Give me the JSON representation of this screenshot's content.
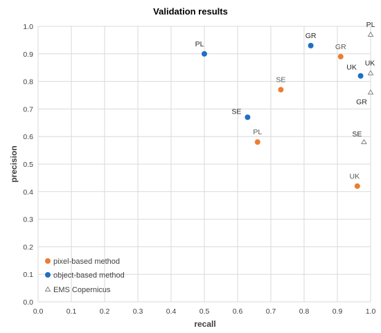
{
  "chart_data": {
    "type": "scatter",
    "title": "Validation results",
    "xlabel": "recall",
    "ylabel": "precision",
    "xlim": [
      0,
      1
    ],
    "ylim": [
      0,
      1
    ],
    "xticks": [
      "0.0",
      "0.1",
      "0.2",
      "0.3",
      "0.4",
      "0.5",
      "0.6",
      "0.7",
      "0.8",
      "0.9",
      "1.0"
    ],
    "yticks": [
      "0.0",
      "0.1",
      "0.2",
      "0.3",
      "0.4",
      "0.5",
      "0.6",
      "0.7",
      "0.8",
      "0.9",
      "1.0"
    ],
    "grid": true,
    "legend_position": "bottom-left",
    "series": [
      {
        "name": "pixel-based method",
        "marker": "circle",
        "color": "#ed7d31",
        "label_color": "#595959",
        "points": [
          {
            "label": "PL",
            "x": 0.66,
            "y": 0.58
          },
          {
            "label": "SE",
            "x": 0.73,
            "y": 0.77
          },
          {
            "label": "GR",
            "x": 0.91,
            "y": 0.89
          },
          {
            "label": "UK",
            "x": 0.96,
            "y": 0.42
          }
        ]
      },
      {
        "name": "object-based method",
        "marker": "circle",
        "color": "#1f6fc5",
        "label_color": "#262626",
        "points": [
          {
            "label": "PL",
            "x": 0.5,
            "y": 0.9
          },
          {
            "label": "SE",
            "x": 0.63,
            "y": 0.67
          },
          {
            "label": "GR",
            "x": 0.82,
            "y": 0.93
          },
          {
            "label": "UK",
            "x": 0.97,
            "y": 0.82
          }
        ]
      },
      {
        "name": "EMS Copernicus",
        "marker": "triangle",
        "color": "#808080",
        "label_color": "#262626",
        "points": [
          {
            "label": "PL",
            "x": 1.0,
            "y": 0.97
          },
          {
            "label": "UK",
            "x": 1.0,
            "y": 0.83
          },
          {
            "label": "GR",
            "x": 1.0,
            "y": 0.76
          },
          {
            "label": "SE",
            "x": 0.98,
            "y": 0.58
          }
        ]
      }
    ]
  }
}
